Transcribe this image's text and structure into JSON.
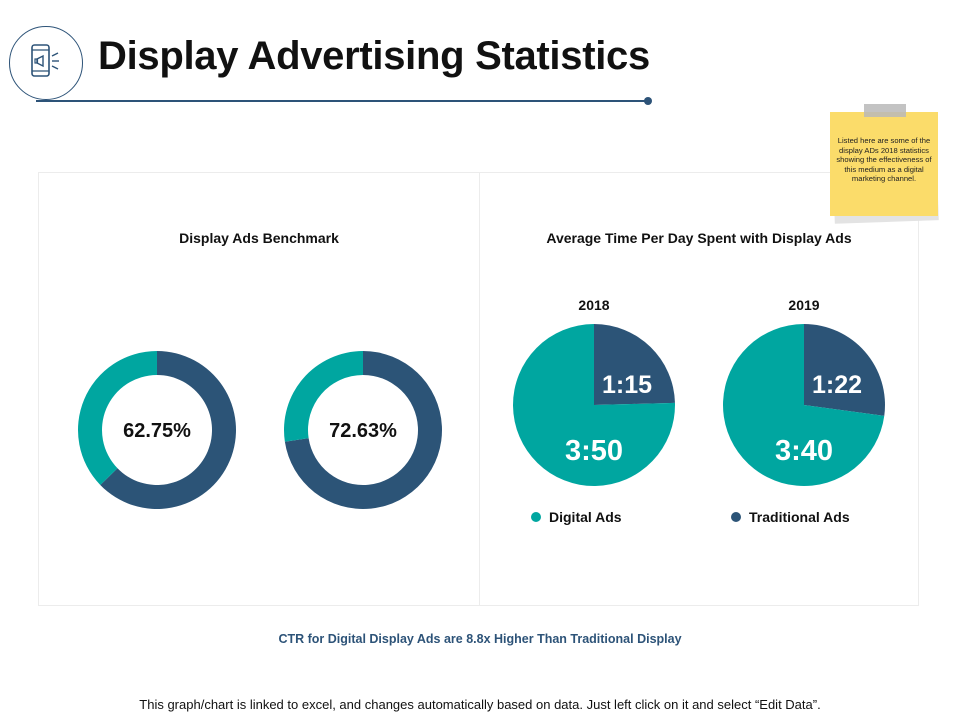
{
  "header": {
    "title": "Display Advertising Statistics",
    "icon": "phone-megaphone-icon"
  },
  "sticky_note": {
    "text": "Listed here are some of the display ADs 2018 statistics showing the effectiveness of this medium as a digital marketing channel."
  },
  "colors": {
    "digital": "#00a6a0",
    "traditional": "#2c5477",
    "accent": "#2d5378",
    "note": "#fbdc6a"
  },
  "chart_data": [
    {
      "type": "pie",
      "subtype": "donut",
      "title": "Display Ads Benchmark",
      "charts": [
        {
          "center_label": "62.75%",
          "value": 62.75,
          "highlight_series": "traditional"
        },
        {
          "center_label": "72.63%",
          "value": 72.63,
          "highlight_series": "traditional"
        }
      ]
    },
    {
      "type": "pie",
      "title": "Average Time Per Day Spent with Display Ads",
      "categories": [
        "Digital Ads",
        "Traditional Ads"
      ],
      "legend_position": "bottom",
      "pies": [
        {
          "label": "2018",
          "values": [
            "3:50",
            "1:15"
          ],
          "minutes": [
            230,
            75
          ]
        },
        {
          "label": "2019",
          "values": [
            "3:40",
            "1:22"
          ],
          "minutes": [
            220,
            82
          ]
        }
      ]
    }
  ],
  "footer": {
    "note": "CTR for Digital Display Ads are 8.8x Higher Than Traditional Display",
    "disclaimer": "This graph/chart is linked to excel, and changes automatically based on data.  Just left click on it and select “Edit Data”."
  }
}
